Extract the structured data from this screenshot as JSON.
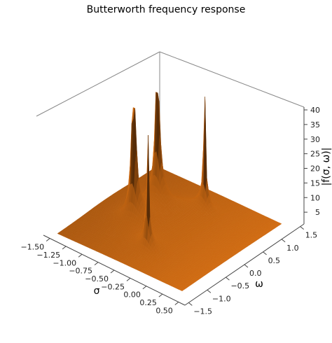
{
  "chart_data": {
    "type": "surface3d",
    "title": "Butterworth frequency response",
    "xlabel": "σ",
    "ylabel": "ω",
    "zlabel": "|f(σ, ω)|",
    "x_ticks": [
      "−1.50",
      "−1.25",
      "−1.00",
      "−0.75",
      "−0.50",
      "−0.25",
      "0.00",
      "0.25",
      "0.50"
    ],
    "y_ticks": [
      "−1.5",
      "−1.0",
      "−0.5",
      "0.0",
      "0.5",
      "1.0",
      "1.5"
    ],
    "z_ticks": [
      "5",
      "10",
      "15",
      "20",
      "25",
      "30",
      "35",
      "40"
    ],
    "xlim": [
      -1.6,
      0.6
    ],
    "ylim": [
      -1.6,
      1.6
    ],
    "zlim": [
      0,
      40
    ],
    "surface_color": "#f57f17",
    "poles": [
      {
        "sigma": -0.3827,
        "omega": 0.9239,
        "peak": 40
      },
      {
        "sigma": -0.9239,
        "omega": 0.3827,
        "peak": 40
      },
      {
        "sigma": -0.9239,
        "omega": -0.3827,
        "peak": 40
      },
      {
        "sigma": -0.3827,
        "omega": -0.9239,
        "peak": 40
      }
    ],
    "colormap_note": "uniform orange with shading"
  }
}
